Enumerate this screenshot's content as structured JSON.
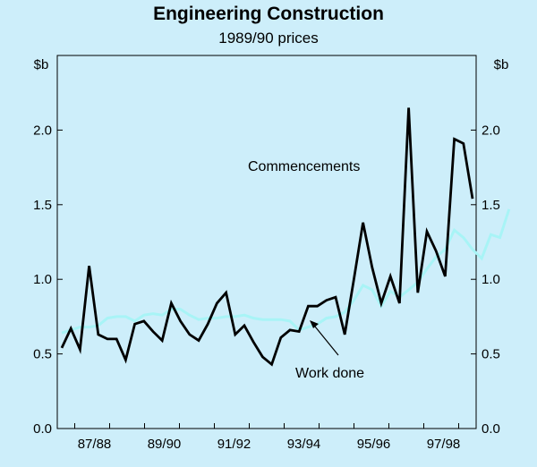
{
  "chart_data": {
    "type": "line",
    "title": "Engineering Construction",
    "subtitle": "1989/90 prices",
    "ylabel_left": "$b",
    "ylabel_right": "$b",
    "ylim": [
      0,
      2.5
    ],
    "yticks": [
      0.0,
      0.5,
      1.0,
      1.5,
      2.0
    ],
    "ytick_labels": [
      "0.0",
      "0.5",
      "1.0",
      "1.5",
      "2.0"
    ],
    "x_start": 1986.5,
    "x_end": 1998.5,
    "xtick_labels": [
      "87/88",
      "89/90",
      "91/92",
      "93/94",
      "95/96",
      "97/98"
    ],
    "xtick_positions": [
      1988.0,
      1990.0,
      1992.0,
      1994.0,
      1996.0,
      1998.0
    ],
    "series": [
      {
        "name": "Work done",
        "color": "#a8f4f6",
        "values": [
          0.64,
          0.66,
          0.68,
          0.68,
          0.69,
          0.74,
          0.75,
          0.75,
          0.72,
          0.76,
          0.77,
          0.76,
          0.8,
          0.8,
          0.76,
          0.73,
          0.74,
          0.74,
          0.75,
          0.75,
          0.76,
          0.74,
          0.73,
          0.73,
          0.73,
          0.72,
          0.66,
          0.68,
          0.7,
          0.74,
          0.75,
          0.78,
          0.86,
          0.96,
          0.93,
          0.82,
          0.92,
          0.88,
          0.93,
          0.98,
          1.07,
          1.15,
          1.2,
          1.33,
          1.28,
          1.2,
          1.14,
          1.3,
          1.28,
          1.47
        ]
      },
      {
        "name": "Commencements",
        "color": "#000000",
        "values": [
          0.54,
          0.67,
          0.53,
          1.09,
          0.63,
          0.6,
          0.6,
          0.46,
          0.7,
          0.72,
          0.65,
          0.59,
          0.84,
          0.72,
          0.63,
          0.59,
          0.7,
          0.84,
          0.91,
          0.63,
          0.69,
          0.58,
          0.48,
          0.43,
          0.61,
          0.66,
          0.65,
          0.82,
          0.82,
          0.86,
          0.88,
          0.63,
          1.0,
          1.38,
          1.08,
          0.84,
          1.02,
          0.84,
          2.15,
          0.91,
          1.32,
          1.19,
          1.02,
          1.94,
          1.91,
          1.54
        ]
      }
    ],
    "annotations": [
      "Commencements",
      "Work done"
    ]
  }
}
